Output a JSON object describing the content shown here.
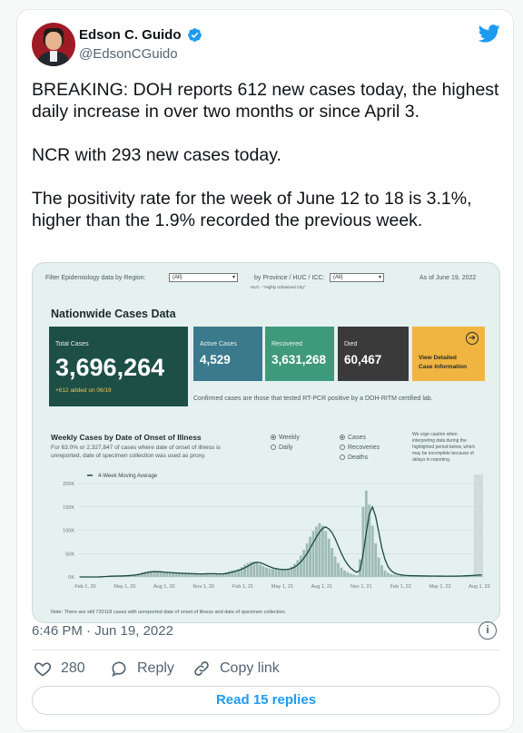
{
  "tweet": {
    "author_name": "Edson C. Guido",
    "author_handle": "@EdsonCGuido",
    "text": "BREAKING: DOH reports 612 new cases today, the highest daily increase in over two months or since April 3.\n\nNCR with 293 new cases today.\n\nThe positivity rate for the week of June 12 to 18 is 3.1%, higher than the 1.9% recorded the previous week.",
    "timestamp": "6:46 PM · Jun 19, 2022",
    "likes": "280",
    "reply_label": "Reply",
    "copy_link_label": "Copy link",
    "read_replies_label": "Read 15 replies"
  },
  "icons": {
    "verified": "verified-badge-icon",
    "brand": "twitter-bird-icon",
    "info": "info-icon",
    "like": "heart-icon",
    "reply": "reply-bubble-icon",
    "link": "link-icon"
  },
  "colors": {
    "twitter_blue": "#1d9bf0",
    "total_tile": "#1d4f46",
    "active_tile": "#3a7a8c",
    "recovered_tile": "#3e9a7b",
    "died_tile": "#3a3a3a",
    "view_tile": "#f0b540",
    "bars": "#9ebbb5",
    "trend_line": "#1d4a40"
  },
  "dashboard": {
    "filter_region_label": "Filter Epidemiology data by Region:",
    "filter_region_value": "(All)",
    "filter_province_label": "by Province / HUC / ICC:",
    "filter_province_value": "(All)",
    "huc_note": "HUC - \"Highly Urbanized City\"",
    "as_of": "As of June 19, 2022",
    "title": "Nationwide Cases Data",
    "total_label": "Total Cases",
    "total_value": "3,696,264",
    "total_sub": "+612 added on 06/19",
    "active_label": "Active Cases",
    "active_value": "4,529",
    "recovered_label": "Recovered",
    "recovered_value": "3,631,268",
    "died_label": "Died",
    "died_value": "60,467",
    "view_label": "View Detailed\nCase Information",
    "confirmed_note": "Confirmed cases are those that tested RT-PCR positive by a DOH-RITM certified lab.",
    "weekly_title": "Weekly Cases by Date of Onset of Illness",
    "weekly_desc_1": "For 63.0% or 2,327,847 of cases where date of onset of illness is",
    "weekly_desc_2": "unreported, date of specimen collection was used as proxy.",
    "opt_weekly": "Weekly",
    "opt_daily": "Daily",
    "opt_cases": "Cases",
    "opt_recoveries": "Recoveries",
    "opt_deaths": "Deaths",
    "caution_1": "We urge caution when",
    "caution_2": "interpreting data during the",
    "caution_3": "highlighted period below, which",
    "caution_4": "may be incomplete because of",
    "caution_5": "delays in reporting.",
    "legend_line": "4-Week Moving Average",
    "footnote": "Note: There are still 720118 cases with unreported date of onset of illness and date of specimen collection."
  },
  "chart_data": {
    "type": "bar",
    "title": "Weekly Cases by Date of Onset of Illness",
    "ylim": [
      0,
      200000
    ],
    "yticks": [
      "200K",
      "150K",
      "100K",
      "50K",
      "0K"
    ],
    "xticks": [
      "Feb 1, 20",
      "May 1, 20",
      "Aug 1, 20",
      "Nov 1, 20",
      "Feb 1, 21",
      "May 1, 21",
      "Aug 1, 21",
      "Nov 1, 21",
      "Feb 1, 22",
      "May 1, 22",
      "Aug 1, 22"
    ],
    "x_start_label": "Feb 1, 20",
    "week_count": 130,
    "weekly_values": [
      0,
      0,
      0,
      0,
      0,
      0,
      100,
      600,
      1400,
      1800,
      2000,
      1900,
      2100,
      2400,
      2800,
      3200,
      3700,
      4500,
      5800,
      7500,
      9500,
      11000,
      12000,
      11500,
      11000,
      10500,
      10000,
      9500,
      9000,
      8600,
      8200,
      8000,
      7800,
      7600,
      7300,
      7000,
      6800,
      6500,
      6400,
      6800,
      7200,
      7500,
      7000,
      6500,
      6200,
      6500,
      7500,
      9500,
      12000,
      14000,
      15000,
      17000,
      21000,
      26000,
      30000,
      32000,
      33000,
      31000,
      27000,
      23000,
      20000,
      18000,
      17000,
      16500,
      16000,
      15500,
      16000,
      18000,
      22000,
      28000,
      36000,
      46000,
      58000,
      72000,
      86000,
      98000,
      108000,
      115000,
      110000,
      98000,
      82000,
      62000,
      44000,
      30000,
      20000,
      14000,
      10000,
      7000,
      5000,
      3500,
      38000,
      150000,
      185000,
      155000,
      110000,
      72000,
      42000,
      25000,
      14000,
      9000,
      6000,
      4500,
      3500,
      3000,
      2800,
      2600,
      2500,
      2400,
      2300,
      2200,
      2100,
      2000,
      1900,
      1900,
      1800,
      1800,
      1700,
      1700,
      1700,
      1800,
      1900,
      2100,
      2300,
      2600,
      3000,
      3500,
      4000,
      4500,
      4800,
      5000
    ],
    "moving_average": [
      0,
      0,
      0,
      0,
      0,
      0,
      100,
      400,
      800,
      1200,
      1600,
      1800,
      1950,
      2100,
      2300,
      2600,
      3000,
      3500,
      4300,
      5400,
      6800,
      8400,
      10000,
      11000,
      11500,
      11300,
      11000,
      10500,
      10000,
      9500,
      9000,
      8600,
      8200,
      7900,
      7700,
      7400,
      7100,
      6900,
      6600,
      6600,
      6700,
      7000,
      7100,
      7000,
      6800,
      6600,
      6700,
      7400,
      8700,
      10300,
      12100,
      14000,
      16500,
      19500,
      23000,
      27000,
      30000,
      31500,
      30500,
      28000,
      25000,
      22000,
      19500,
      17800,
      16800,
      16100,
      16000,
      16500,
      18000,
      21000,
      26000,
      32000,
      40500,
      50000,
      62000,
      73500,
      85500,
      96000,
      104000,
      107000,
      103000,
      95000,
      82500,
      66500,
      51000,
      37500,
      27000,
      19000,
      13500,
      10000,
      14500,
      49000,
      94000,
      135000,
      150000,
      130000,
      97000,
      62000,
      38000,
      22000,
      13500,
      8500,
      6000,
      4700,
      3700,
      3100,
      2800,
      2600,
      2500,
      2400,
      2300,
      2200,
      2100,
      2000,
      1900,
      1850,
      1800,
      1750,
      1700,
      1700,
      1750,
      1850,
      2000,
      2200,
      2500,
      2800,
      3200,
      3700,
      4200,
      4600
    ],
    "highlight_period": "incomplete reporting period (last weeks)"
  }
}
